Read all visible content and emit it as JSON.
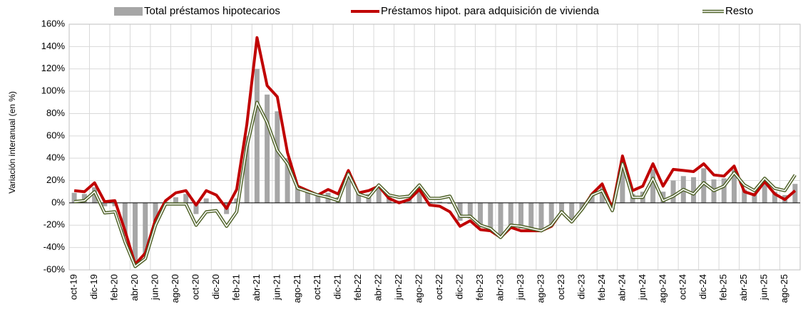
{
  "chart_data": {
    "type": "bar_line",
    "y_label": "Variación interanual (en %)",
    "categories": [
      "oct-19",
      null,
      "dic-19",
      null,
      "feb-20",
      null,
      "abr-20",
      null,
      "jun-20",
      null,
      "ago-20",
      null,
      "oct-20",
      null,
      "dic-20",
      null,
      "feb-21",
      null,
      "abr-21",
      null,
      "jun-21",
      null,
      "ago-21",
      null,
      "oct-21",
      null,
      "dic-21",
      null,
      "feb-22",
      null,
      "abr-22",
      null,
      "jun-22",
      null,
      "ago-22",
      null,
      "oct-22",
      null,
      "dic-22",
      null,
      "feb-23",
      null,
      "abr-23",
      null,
      "jun-23",
      null,
      "ago-23",
      null,
      "oct-23",
      null,
      "dic-23",
      null,
      "feb-24",
      null,
      "abr-24",
      null,
      "jun-24",
      null,
      "ago-24",
      null,
      "oct-24",
      null,
      "dic-24",
      null,
      "feb-25",
      null,
      "abr-25",
      null,
      "jun-25",
      null,
      "ago-25",
      null
    ],
    "series": [
      {
        "name": "Total préstamos hipotecarios",
        "kind": "bar",
        "color": "#a6a6a6",
        "values": [
          9,
          8,
          14,
          -3,
          -3,
          -30,
          -56,
          -47,
          -17,
          1,
          5,
          8,
          -10,
          4,
          0,
          -10,
          4,
          60,
          120,
          97,
          82,
          40,
          14,
          11,
          7,
          9,
          5,
          28,
          9,
          8,
          16,
          5,
          2,
          4,
          14,
          1,
          1,
          -1,
          -16,
          -14,
          -22,
          -24,
          -31,
          -21,
          -23,
          -24,
          -25,
          -21,
          -8,
          -17,
          -6,
          8,
          14,
          -6,
          38,
          8,
          10,
          30,
          10,
          20,
          24,
          23,
          31,
          21,
          22,
          30,
          12,
          9,
          20,
          10,
          7,
          17
        ]
      },
      {
        "name": "Préstamos hipot. para adquisición de vivienda",
        "kind": "line",
        "color": "#c00000",
        "values": [
          11,
          10,
          18,
          1,
          2,
          -25,
          -55,
          -45,
          -15,
          2,
          9,
          11,
          -2,
          11,
          7,
          -5,
          12,
          70,
          148,
          105,
          95,
          45,
          15,
          11,
          7,
          12,
          8,
          29,
          9,
          11,
          15,
          4,
          0,
          3,
          12,
          -2,
          -3,
          -8,
          -21,
          -16,
          -24,
          -25,
          -31,
          -22,
          -25,
          -25,
          -25,
          -21,
          -8,
          -17,
          -6,
          8,
          17,
          -5,
          42,
          11,
          15,
          35,
          15,
          30,
          29,
          28,
          35,
          25,
          24,
          33,
          10,
          7,
          19,
          8,
          3,
          11
        ]
      },
      {
        "name": "Resto",
        "kind": "double-line",
        "color": "#4f6228",
        "values": [
          1,
          2,
          10,
          -9,
          -8,
          -35,
          -57,
          -50,
          -20,
          -1,
          -1,
          -1,
          -20,
          -8,
          -7,
          -21,
          -8,
          50,
          90,
          72,
          47,
          35,
          13,
          10,
          7,
          5,
          2,
          26,
          8,
          5,
          16,
          7,
          5,
          6,
          16,
          4,
          4,
          6,
          -12,
          -12,
          -20,
          -23,
          -31,
          -20,
          -21,
          -23,
          -25,
          -20,
          -8,
          -17,
          -6,
          7,
          11,
          -7,
          35,
          5,
          5,
          22,
          2,
          6,
          12,
          8,
          18,
          11,
          15,
          27,
          16,
          11,
          22,
          13,
          11,
          25
        ]
      }
    ],
    "ylim": [
      -60,
      160
    ],
    "yticks": [
      {
        "value": -60,
        "label": "-60%"
      },
      {
        "value": -40,
        "label": "-40%"
      },
      {
        "value": -20,
        "label": "-20%"
      },
      {
        "value": 0,
        "label": "0%"
      },
      {
        "value": 20,
        "label": "20%"
      },
      {
        "value": 40,
        "label": "40%"
      },
      {
        "value": 60,
        "label": "60%"
      },
      {
        "value": 80,
        "label": "80%"
      },
      {
        "value": 100,
        "label": "100%"
      },
      {
        "value": 120,
        "label": "120%"
      },
      {
        "value": 140,
        "label": "140%"
      },
      {
        "value": 160,
        "label": "160%"
      }
    ],
    "grid": true,
    "legend": "top"
  }
}
